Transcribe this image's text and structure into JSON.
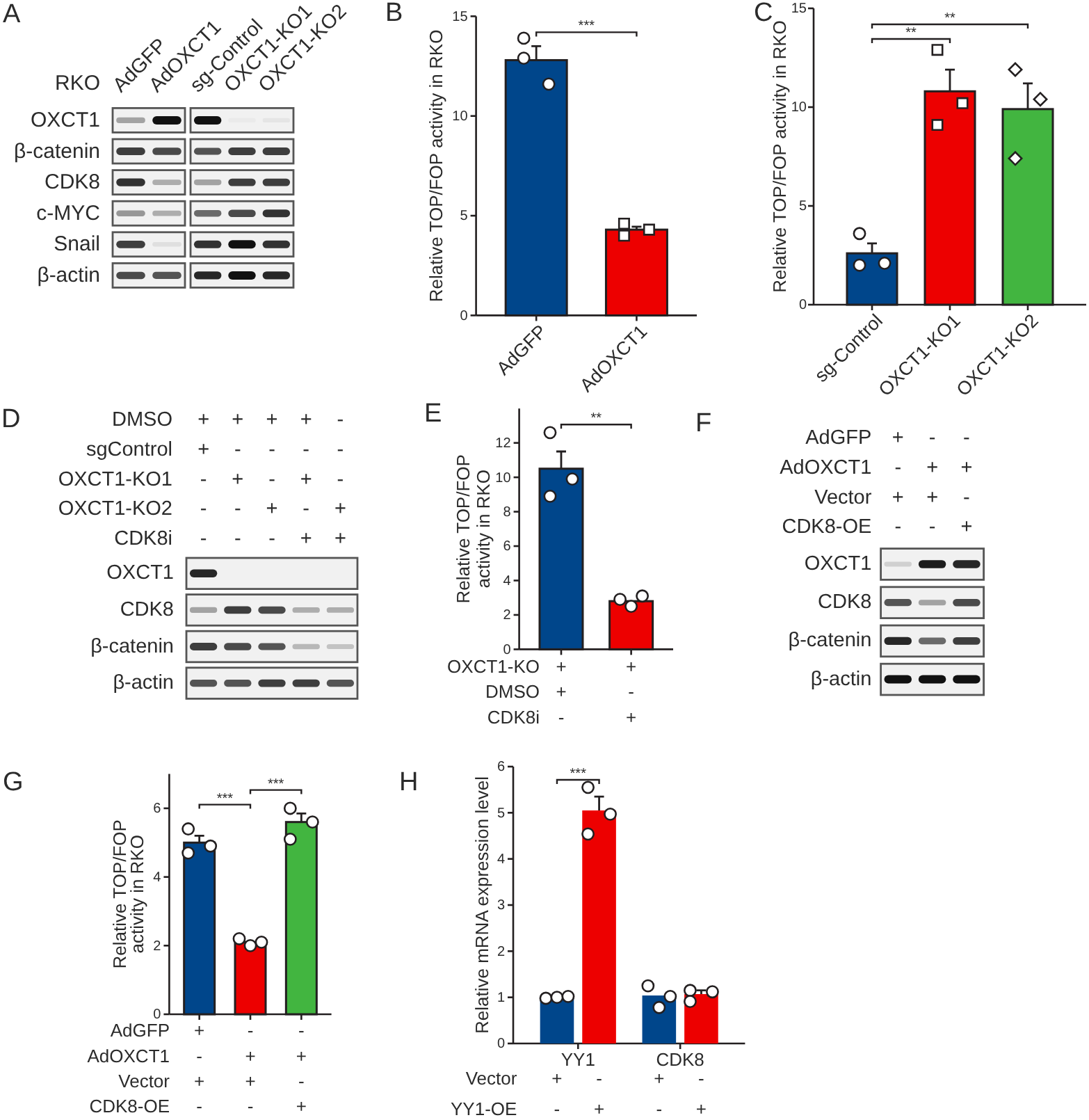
{
  "chart_data": [
    {
      "type": "other",
      "title": "A",
      "categories": [
        "AdGFP",
        "AdOXCT1",
        "sg-Control",
        "OXCT1-KO1",
        "OXCT1-KO2"
      ],
      "y_categories": [
        "OXCT1",
        "β-catenin",
        "CDK8",
        "c-MYC",
        "Snail",
        "β-actin"
      ],
      "annotations": [
        "RKO"
      ]
    },
    {
      "type": "bar",
      "title": "B",
      "ylabel": "Relative TOP/FOP activity in RKO",
      "categories": [
        "AdGFP",
        "AdOXCT1"
      ],
      "ylim": [
        0,
        15
      ],
      "yticks": [
        0,
        5,
        10,
        15
      ],
      "annotations": [
        "***"
      ],
      "series": [
        {
          "type": "bar",
          "colors": [
            "#00468b",
            "#ed0000"
          ],
          "values": [
            12.8,
            4.3
          ],
          "errors": [
            [
              12.8,
              13.5
            ],
            [
              4.3,
              4.45
            ]
          ]
        },
        {
          "type": "scatter",
          "color": "#ffffff",
          "marker": "circle",
          "values": [
            12.9,
            null
          ]
        },
        {
          "type": "scatter",
          "color": "#ffffff",
          "marker": "circle",
          "values": [
            11.6,
            null
          ]
        },
        {
          "type": "scatter",
          "color": "#ffffff",
          "marker": "circle",
          "values": [
            13.9,
            null
          ]
        },
        {
          "type": "scatter",
          "color": "#ffffff",
          "marker": "square",
          "values": [
            null,
            4.6
          ]
        },
        {
          "type": "scatter",
          "color": "#ffffff",
          "marker": "square",
          "values": [
            null,
            4.3
          ]
        },
        {
          "type": "scatter",
          "color": "#ffffff",
          "marker": "square",
          "values": [
            null,
            4.0
          ]
        }
      ]
    },
    {
      "type": "bar",
      "title": "C",
      "ylabel": "Relative TOP/FOP activity in RKO",
      "categories": [
        "sg-Control",
        "OXCT1-KO1",
        "OXCT1-KO2"
      ],
      "ylim": [
        0,
        15
      ],
      "yticks": [
        0,
        5,
        10,
        15
      ],
      "annotations": [
        "**",
        "**"
      ],
      "series": [
        {
          "type": "bar",
          "colors": [
            "#00468b",
            "#ed0000",
            "#42b540"
          ],
          "values": [
            2.6,
            10.8,
            9.9
          ],
          "errors": [
            [
              2.6,
              3.1
            ],
            [
              10.8,
              11.9
            ],
            [
              9.9,
              11.2
            ]
          ]
        },
        {
          "type": "scatter",
          "color": "#ffffff",
          "marker": "circle",
          "values": [
            3.6,
            null,
            null
          ]
        },
        {
          "type": "scatter",
          "color": "#ffffff",
          "marker": "circle",
          "values": [
            2.1,
            null,
            null
          ]
        },
        {
          "type": "scatter",
          "color": "#ffffff",
          "marker": "circle",
          "values": [
            2.0,
            null,
            null
          ]
        },
        {
          "type": "scatter",
          "color": "#ffffff",
          "marker": "square",
          "values": [
            null,
            12.9,
            null
          ]
        },
        {
          "type": "scatter",
          "color": "#ffffff",
          "marker": "square",
          "values": [
            null,
            10.2,
            null
          ]
        },
        {
          "type": "scatter",
          "color": "#ffffff",
          "marker": "square",
          "values": [
            null,
            9.1,
            null
          ]
        },
        {
          "type": "scatter",
          "color": "#ffffff",
          "marker": "diamond",
          "values": [
            null,
            null,
            11.9
          ]
        },
        {
          "type": "scatter",
          "color": "#ffffff",
          "marker": "diamond",
          "values": [
            null,
            null,
            10.4
          ]
        },
        {
          "type": "scatter",
          "color": "#ffffff",
          "marker": "diamond",
          "values": [
            null,
            null,
            7.4
          ]
        }
      ]
    },
    {
      "type": "other",
      "title": "D",
      "categories": [
        null,
        null,
        null,
        null,
        null
      ],
      "y_categories": [
        "DMSO",
        "sgControl",
        "OXCT1-KO1",
        "OXCT1-KO2",
        "CDK8i"
      ],
      "cell_labels": [
        [
          "+",
          "+",
          "+",
          "+",
          "-"
        ],
        [
          "+",
          "-",
          "-",
          "-",
          "-"
        ],
        [
          "-",
          "+",
          "-",
          "+",
          "-"
        ],
        [
          "-",
          "-",
          "+",
          "-",
          "+"
        ],
        [
          "-",
          "-",
          "-",
          "+",
          "+"
        ]
      ],
      "y2_categories": [
        "OXCT1",
        "CDK8",
        "β-catenin",
        "β-actin"
      ]
    },
    {
      "type": "bar",
      "title": "E",
      "ylabel": "Relative TOP/FOP activity in RKO",
      "categories": [
        null,
        null
      ],
      "tick_labels": "y",
      "ylim": [
        0,
        14
      ],
      "yticks": [
        0,
        2,
        4,
        6,
        8,
        10,
        12
      ],
      "annotations": [
        "**"
      ],
      "y_categories": [
        "OXCT1-KO",
        "DMSO",
        "CDK8i"
      ],
      "cell_labels": [
        [
          "+",
          "+"
        ],
        [
          "+",
          "-"
        ],
        [
          "-",
          "+"
        ]
      ],
      "series": [
        {
          "type": "bar",
          "colors": [
            "#00468b",
            "#ed0000"
          ],
          "values": [
            10.5,
            2.8
          ],
          "errors": [
            [
              10.5,
              11.5
            ],
            null
          ]
        },
        {
          "type": "scatter",
          "color": "#ffffff",
          "marker": "circle",
          "values": [
            12.6,
            2.9
          ]
        },
        {
          "type": "scatter",
          "color": "#ffffff",
          "marker": "circle",
          "values": [
            9.9,
            2.5
          ]
        },
        {
          "type": "scatter",
          "color": "#ffffff",
          "marker": "circle",
          "values": [
            8.9,
            3.1
          ]
        }
      ]
    },
    {
      "type": "other",
      "title": "F",
      "categories": [
        null,
        null,
        null
      ],
      "y_categories": [
        "AdGFP",
        "AdOXCT1",
        "Vector",
        "CDK8-OE"
      ],
      "cell_labels": [
        [
          "+",
          "-",
          "-"
        ],
        [
          "-",
          "+",
          "+"
        ],
        [
          "+",
          "+",
          "-"
        ],
        [
          "-",
          "-",
          "+"
        ]
      ],
      "y2_categories": [
        "OXCT1",
        "CDK8",
        "β-catenin",
        "β-actin"
      ]
    },
    {
      "type": "bar",
      "title": "G",
      "ylabel": "Relative TOP/FOP activity in RKO",
      "categories": [
        null,
        null,
        null
      ],
      "tick_labels": "y",
      "ylim": [
        0,
        7
      ],
      "yticks": [
        0,
        2,
        4,
        6
      ],
      "annotations": [
        "***",
        "***"
      ],
      "y_categories": [
        "AdGFP",
        "AdOXCT1",
        "Vector",
        "CDK8-OE"
      ],
      "cell_labels": [
        [
          "+",
          "-",
          "-"
        ],
        [
          "-",
          "+",
          "+"
        ],
        [
          "+",
          "+",
          "-"
        ],
        [
          "-",
          "-",
          "+"
        ]
      ],
      "series": [
        {
          "type": "bar",
          "colors": [
            "#00468b",
            "#ed0000",
            "#42b540"
          ],
          "values": [
            5.0,
            2.1,
            5.6
          ],
          "errors": [
            [
              5.0,
              5.2
            ],
            null,
            [
              5.6,
              5.85
            ]
          ]
        },
        {
          "type": "scatter",
          "color": "#ffffff",
          "marker": "circle",
          "values": [
            5.4,
            2.2,
            6.0
          ]
        },
        {
          "type": "scatter",
          "color": "#ffffff",
          "marker": "circle",
          "values": [
            4.9,
            2.0,
            5.6
          ]
        },
        {
          "type": "scatter",
          "color": "#ffffff",
          "marker": "circle",
          "values": [
            4.7,
            2.1,
            5.1
          ]
        }
      ]
    },
    {
      "type": "bar",
      "title": "H",
      "ylabel": "Relative mRNA expression level",
      "categories": [
        "YY1",
        "CDK8"
      ],
      "ylim": [
        0,
        6
      ],
      "yticks": [
        0,
        1,
        2,
        3,
        4,
        5,
        6
      ],
      "annotations": [
        "***"
      ],
      "y_categories": [
        "Vector",
        "YY1-OE"
      ],
      "cell_labels": [
        [
          "+",
          "-",
          "+",
          "-"
        ],
        [
          "-",
          "+",
          "-",
          "+"
        ]
      ],
      "series": [
        {
          "type": "bar",
          "color": "#00468b",
          "values": [
            1.0,
            1.04
          ]
        },
        {
          "type": "bar",
          "color": "#ed0000",
          "values": [
            5.05,
            1.07
          ],
          "errors": [
            [
              5.05,
              5.35
            ],
            [
              1.07,
              1.15
            ]
          ]
        },
        {
          "type": "scatter",
          "color": "#ffffff",
          "marker": "circle",
          "values": [
            0.98,
            1.25
          ]
        },
        {
          "type": "scatter",
          "color": "#ffffff",
          "marker": "circle",
          "values": [
            1.0,
            0.78
          ]
        },
        {
          "type": "scatter",
          "color": "#ffffff",
          "marker": "circle",
          "values": [
            1.02,
            1.02
          ]
        },
        {
          "type": "scatter",
          "color": "#ffffff",
          "marker": "circle",
          "values": [
            5.55,
            1.15
          ]
        },
        {
          "type": "scatter",
          "color": "#ffffff",
          "marker": "circle",
          "values": [
            4.97,
            1.12
          ]
        },
        {
          "type": "scatter",
          "color": "#ffffff",
          "marker": "circle",
          "values": [
            4.54,
            0.91
          ]
        }
      ]
    }
  ]
}
